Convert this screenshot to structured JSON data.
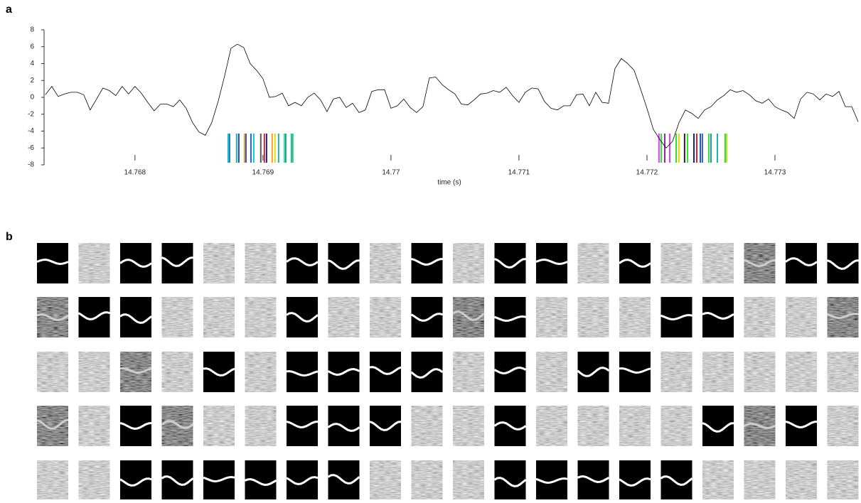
{
  "chart_data": {
    "type": "line",
    "panel_label": "a",
    "xlabel": "time (s)",
    "x": [
      14.7673,
      14.76735,
      14.7674,
      14.76745,
      14.7675,
      14.76755,
      14.7676,
      14.76765,
      14.7677,
      14.76775,
      14.7678,
      14.76785,
      14.7679,
      14.76795,
      14.768,
      14.76805,
      14.7681,
      14.76815,
      14.7682,
      14.76825,
      14.7683,
      14.76835,
      14.7684,
      14.76845,
      14.7685,
      14.76855,
      14.7686,
      14.76865,
      14.7687,
      14.76875,
      14.7688,
      14.76885,
      14.7689,
      14.76895,
      14.769,
      14.76905,
      14.7691,
      14.76915,
      14.7692,
      14.76925,
      14.7693,
      14.76935,
      14.7694,
      14.76945,
      14.7695,
      14.76955,
      14.7696,
      14.76965,
      14.7697,
      14.76975,
      14.7698,
      14.76985,
      14.7699,
      14.76995,
      14.77,
      14.77005,
      14.7701,
      14.77015,
      14.7702,
      14.77025,
      14.7703,
      14.77035,
      14.7704,
      14.77045,
      14.7705,
      14.77055,
      14.7706,
      14.77065,
      14.7707,
      14.77075,
      14.7708,
      14.77085,
      14.7709,
      14.77095,
      14.771,
      14.77105,
      14.7711,
      14.77115,
      14.7712,
      14.77125,
      14.7713,
      14.77135,
      14.7714,
      14.77145,
      14.7715,
      14.77155,
      14.7716,
      14.77165,
      14.7717,
      14.77175,
      14.7718,
      14.77185,
      14.7719,
      14.77195,
      14.772,
      14.77205,
      14.7721,
      14.77215,
      14.7722,
      14.77225,
      14.7723,
      14.77235,
      14.7724,
      14.77245,
      14.7725,
      14.77255,
      14.7726,
      14.77265,
      14.7727,
      14.77275,
      14.7728,
      14.77285,
      14.7729,
      14.77295,
      14.773,
      14.77305,
      14.7731,
      14.77315,
      14.7732,
      14.77325,
      14.7733,
      14.77335,
      14.7734,
      14.77345,
      14.7735,
      14.77355,
      14.7736,
      14.77365
    ],
    "series": [
      {
        "color": "#000000",
        "values": [
          0.3,
          1.3,
          0.1,
          0.4,
          0.6,
          0.6,
          0.3,
          -1.5,
          -0.2,
          1.1,
          0.8,
          0.2,
          1.3,
          0.4,
          1.3,
          0.5,
          -0.6,
          -1.6,
          -0.8,
          -0.8,
          -1.1,
          -0.3,
          -1.3,
          -3.0,
          -4.1,
          -4.5,
          -3.0,
          -0.5,
          2.5,
          5.8,
          6.3,
          5.9,
          4.0,
          3.2,
          2.2,
          0.0,
          0.1,
          0.5,
          -1.0,
          -0.6,
          -1.0,
          0.0,
          0.5,
          -0.3,
          -1.7,
          -0.2,
          0.0,
          -1.2,
          -0.7,
          -1.8,
          -1.5,
          0.7,
          0.9,
          0.9,
          -1.3,
          -1.0,
          -0.2,
          -1.2,
          -1.8,
          -1.1,
          2.3,
          2.4,
          1.5,
          0.9,
          0.4,
          -0.8,
          -0.9,
          -0.3,
          0.4,
          0.5,
          0.8,
          0.6,
          1.2,
          0.2,
          -0.6,
          0.6,
          1.1,
          1.0,
          -0.5,
          -1.3,
          -1.5,
          -1.0,
          -1.0,
          0.3,
          0.4,
          -1.0,
          0.6,
          -0.6,
          -0.7,
          3.4,
          4.6,
          4.0,
          3.2,
          1.0,
          -1.3,
          -3.8,
          -5.0,
          -6.0,
          -5.2,
          -3.0,
          -1.5,
          -1.9,
          -2.5,
          -1.5,
          -1.1,
          -0.3,
          0.2,
          0.9,
          0.6,
          0.8,
          0.3,
          -0.4,
          -0.7,
          -0.2,
          -1.1,
          -1.5,
          -1.8,
          -2.5,
          -0.2,
          0.6,
          0.4,
          -0.3,
          0.4,
          0.1,
          0.7,
          -1.1,
          -1.1,
          -2.9
        ]
      }
    ],
    "events": [
      {
        "x": 14.768728,
        "color": "#17becf"
      },
      {
        "x": 14.768739,
        "color": "#1f77b4"
      },
      {
        "x": 14.768794,
        "color": "#20b2aa"
      },
      {
        "x": 14.768811,
        "color": "#1f3fb4"
      },
      {
        "x": 14.768856,
        "color": "#ff9f1a"
      },
      {
        "x": 14.768867,
        "color": "#2a52be"
      },
      {
        "x": 14.768906,
        "color": "#3060d0"
      },
      {
        "x": 14.768928,
        "color": "#00ced1"
      },
      {
        "x": 14.768983,
        "color": "#555555"
      },
      {
        "x": 14.769011,
        "color": "#d62728"
      },
      {
        "x": 14.769028,
        "color": "#1a237e"
      },
      {
        "x": 14.769072,
        "color": "#ff9f1a"
      },
      {
        "x": 14.769094,
        "color": "#e6d800"
      },
      {
        "x": 14.769122,
        "color": "#20b2aa"
      },
      {
        "x": 14.769167,
        "color": "#2ee8a0"
      },
      {
        "x": 14.769178,
        "color": "#17a589"
      },
      {
        "x": 14.769222,
        "color": "#20b2aa"
      },
      {
        "x": 14.769233,
        "color": "#2ecc71"
      },
      {
        "x": 14.772094,
        "color": "#e040fb"
      },
      {
        "x": 14.772111,
        "color": "#33dd33"
      },
      {
        "x": 14.772139,
        "color": "#8e24aa"
      },
      {
        "x": 14.772178,
        "color": "#e040fb"
      },
      {
        "x": 14.772228,
        "color": "#33dd33"
      },
      {
        "x": 14.77225,
        "color": "#e6d800"
      },
      {
        "x": 14.772294,
        "color": "#222222"
      },
      {
        "x": 14.772317,
        "color": "#33dd33"
      },
      {
        "x": 14.772367,
        "color": "#1a237e"
      },
      {
        "x": 14.772389,
        "color": "#d62728"
      },
      {
        "x": 14.772417,
        "color": "#2a52be"
      },
      {
        "x": 14.772433,
        "color": "#3060d0"
      },
      {
        "x": 14.772483,
        "color": "#33dd33"
      },
      {
        "x": 14.7725,
        "color": "#17a589"
      },
      {
        "x": 14.77255,
        "color": "#20b2aa"
      },
      {
        "x": 14.772611,
        "color": "#33dd33"
      },
      {
        "x": 14.772622,
        "color": "#b5e61d"
      }
    ],
    "xlim": [
      14.76729,
      14.77365
    ],
    "ylim": [
      -8,
      8
    ],
    "xticks": [
      14.768,
      14.769,
      14.77,
      14.771,
      14.772,
      14.773
    ],
    "yticks": [
      -8,
      -6,
      -4,
      -2,
      0,
      2,
      4,
      6,
      8
    ]
  },
  "panel_b": {
    "label": "b"
  }
}
